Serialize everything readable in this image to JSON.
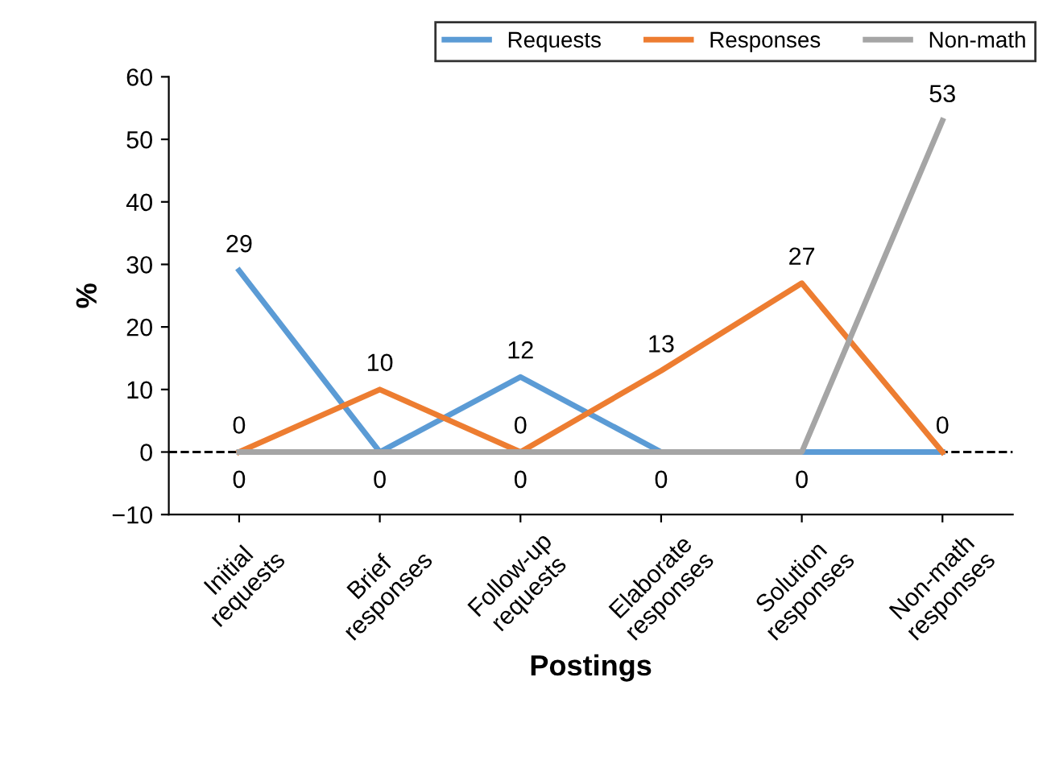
{
  "chart_data": {
    "type": "line",
    "xlabel": "Postings",
    "ylabel": "%",
    "categories": [
      "Initial\nrequests",
      "Brief\nresponses",
      "Follow-up\nrequests",
      "Elaborate\nresponses",
      "Solution\nresponses",
      "Non-math\nresponses"
    ],
    "series": [
      {
        "name": "Requests",
        "color": "#5b9bd5",
        "values": [
          29,
          0,
          12,
          0,
          0,
          0
        ],
        "value_labels": [
          "29",
          "0",
          "12",
          "0",
          null,
          null
        ]
      },
      {
        "name": "Responses",
        "color": "#ed7d31",
        "values": [
          0,
          10,
          0,
          13,
          27,
          0
        ],
        "value_labels": [
          "0",
          "10",
          "0",
          "13",
          "27",
          "0"
        ]
      },
      {
        "name": "Non-math",
        "color": "#a5a5a5",
        "values": [
          0,
          0,
          0,
          0,
          0,
          53
        ],
        "value_labels": [
          "0",
          null,
          "0",
          null,
          "0",
          "53"
        ]
      }
    ],
    "ylim": [
      -10,
      60
    ],
    "yticks": [
      {
        "value": -10,
        "label": "−10"
      },
      0,
      10,
      20,
      30,
      40,
      50,
      60
    ],
    "ref_lines": [
      {
        "axis": "y",
        "value": 0,
        "color": "#000000",
        "line_style": "dashed"
      }
    ],
    "grid": false,
    "legend": "top right",
    "marker": "none",
    "line_style": "solid"
  }
}
